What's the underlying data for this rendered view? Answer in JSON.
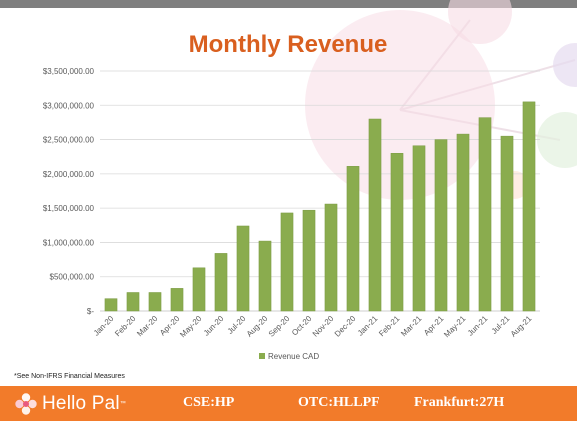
{
  "chart_data": {
    "type": "bar",
    "title": "Monthly Revenue",
    "categories": [
      "Jan-20",
      "Feb-20",
      "Mar-20",
      "Apr-20",
      "May-20",
      "Jun-20",
      "Jul-20",
      "Aug-20",
      "Sep-20",
      "Oct-20",
      "Nov-20",
      "Dec-20",
      "Jan-21",
      "Feb-21",
      "Mar-21",
      "Apr-21",
      "May-21",
      "Jun-21",
      "Jul-21",
      "Aug-21"
    ],
    "series": [
      {
        "name": "Revenue CAD",
        "color": "#8aac4e",
        "values": [
          180000,
          270000,
          270000,
          330000,
          630000,
          840000,
          1240000,
          1020000,
          1430000,
          1470000,
          1560000,
          2110000,
          2800000,
          2300000,
          2410000,
          2500000,
          2580000,
          2820000,
          2550000,
          3050000
        ]
      }
    ],
    "y_ticks": [
      "$-",
      "$500,000.00",
      "$1,000,000.00",
      "$1,500,000.00",
      "$2,000,000.00",
      "$2,500,000.00",
      "$3,000,000.00",
      "$3,500,000.00"
    ],
    "ylim": [
      0,
      3500000
    ],
    "grid": true,
    "legend_position": "bottom",
    "title_color": "#d95f1f"
  },
  "footnote": "*See Non-IFRS Financial Measures",
  "footer": {
    "brand": "Hello Pal",
    "brand_tm": "™",
    "tickers": [
      "CSE:HP",
      "OTC:HLLPF",
      "Frankfurt:27H"
    ],
    "background": "#f27b2a"
  }
}
